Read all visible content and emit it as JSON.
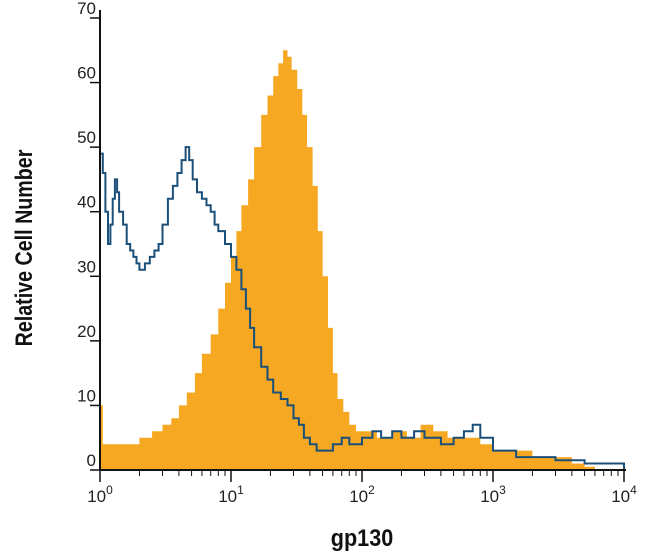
{
  "chart_data": {
    "type": "histogram",
    "xlabel": "gp130",
    "ylabel": "Relative Cell Number",
    "x_scale": "log",
    "xlim": [
      1,
      10000
    ],
    "ylim": [
      0,
      70
    ],
    "y_ticks": [
      0,
      10,
      20,
      30,
      40,
      50,
      60,
      70
    ],
    "y_tick_labels": [
      "0",
      "10",
      "20",
      "30",
      "40",
      "50",
      "60",
      "70"
    ],
    "x_ticks": [
      1,
      10,
      100,
      1000,
      10000
    ],
    "x_tick_labels": [
      {
        "base": "10",
        "exp": "0"
      },
      {
        "base": "10",
        "exp": "1"
      },
      {
        "base": "10",
        "exp": "2"
      },
      {
        "base": "10",
        "exp": "3"
      },
      {
        "base": "10",
        "exp": "4"
      }
    ],
    "grid": false,
    "series": [
      {
        "style": "filled",
        "color": "#f7a823",
        "points": [
          [
            1.0,
            10
          ],
          [
            1.05,
            4
          ],
          [
            1.3,
            4
          ],
          [
            1.6,
            4
          ],
          [
            2.0,
            5
          ],
          [
            2.5,
            6
          ],
          [
            3.0,
            7
          ],
          [
            3.5,
            8
          ],
          [
            4.0,
            10
          ],
          [
            4.6,
            12
          ],
          [
            5.3,
            15
          ],
          [
            6.0,
            18
          ],
          [
            7.0,
            21
          ],
          [
            8.0,
            25
          ],
          [
            9.0,
            29
          ],
          [
            10.0,
            33
          ],
          [
            11.0,
            37
          ],
          [
            12.0,
            41
          ],
          [
            13.5,
            45
          ],
          [
            15.0,
            50
          ],
          [
            17.0,
            55
          ],
          [
            19.0,
            58
          ],
          [
            21.0,
            61
          ],
          [
            23.0,
            63
          ],
          [
            25.0,
            65
          ],
          [
            27.0,
            64
          ],
          [
            29.0,
            62
          ],
          [
            32.0,
            59
          ],
          [
            35.0,
            55
          ],
          [
            38.0,
            50
          ],
          [
            42.0,
            44
          ],
          [
            46.0,
            37
          ],
          [
            50.0,
            30
          ],
          [
            55.0,
            22
          ],
          [
            60.0,
            15
          ],
          [
            65.0,
            11
          ],
          [
            72.0,
            9
          ],
          [
            80.0,
            7
          ],
          [
            90.0,
            6
          ],
          [
            100.0,
            6
          ],
          [
            130.0,
            5
          ],
          [
            170.0,
            6
          ],
          [
            220.0,
            5
          ],
          [
            280.0,
            7
          ],
          [
            350.0,
            6
          ],
          [
            450.0,
            5
          ],
          [
            600.0,
            5
          ],
          [
            800.0,
            4
          ],
          [
            1000.0,
            3
          ],
          [
            1500.0,
            3
          ],
          [
            2000.0,
            2
          ],
          [
            3000.0,
            2
          ],
          [
            4000.0,
            1
          ],
          [
            5000.0,
            0.5
          ],
          [
            6000.0,
            0
          ]
        ]
      },
      {
        "style": "outline",
        "color": "#1a4f7a",
        "points": [
          [
            1.0,
            49
          ],
          [
            1.05,
            46
          ],
          [
            1.1,
            40
          ],
          [
            1.15,
            35
          ],
          [
            1.2,
            38
          ],
          [
            1.25,
            42
          ],
          [
            1.3,
            45
          ],
          [
            1.35,
            43
          ],
          [
            1.4,
            40
          ],
          [
            1.5,
            38
          ],
          [
            1.6,
            35
          ],
          [
            1.7,
            34
          ],
          [
            1.8,
            33
          ],
          [
            1.9,
            32
          ],
          [
            2.0,
            31
          ],
          [
            2.2,
            32
          ],
          [
            2.4,
            33
          ],
          [
            2.6,
            34
          ],
          [
            2.8,
            35
          ],
          [
            3.0,
            38
          ],
          [
            3.3,
            42
          ],
          [
            3.6,
            44
          ],
          [
            3.9,
            46
          ],
          [
            4.2,
            48
          ],
          [
            4.5,
            50
          ],
          [
            4.8,
            48
          ],
          [
            5.1,
            45
          ],
          [
            5.5,
            43
          ],
          [
            6.0,
            42
          ],
          [
            6.5,
            41
          ],
          [
            7.0,
            40
          ],
          [
            7.5,
            38
          ],
          [
            8.0,
            37
          ],
          [
            9.0,
            35
          ],
          [
            10.0,
            33
          ],
          [
            11.0,
            31
          ],
          [
            12.0,
            28
          ],
          [
            13.0,
            25
          ],
          [
            14.0,
            22
          ],
          [
            15.0,
            19
          ],
          [
            17.0,
            16
          ],
          [
            19.0,
            14
          ],
          [
            21.0,
            12
          ],
          [
            24.0,
            11
          ],
          [
            27.0,
            10
          ],
          [
            30.0,
            8
          ],
          [
            33.0,
            7
          ],
          [
            36.0,
            5
          ],
          [
            40.0,
            4
          ],
          [
            45.0,
            3
          ],
          [
            50.0,
            3
          ],
          [
            60.0,
            4
          ],
          [
            70.0,
            5
          ],
          [
            80.0,
            4
          ],
          [
            90.0,
            4
          ],
          [
            100.0,
            5
          ],
          [
            120.0,
            6
          ],
          [
            140.0,
            5
          ],
          [
            170.0,
            6
          ],
          [
            200.0,
            5
          ],
          [
            250.0,
            6
          ],
          [
            300.0,
            5
          ],
          [
            400.0,
            4
          ],
          [
            500.0,
            5
          ],
          [
            600.0,
            6
          ],
          [
            700.0,
            7
          ],
          [
            800.0,
            5
          ],
          [
            1000.0,
            3
          ],
          [
            1500.0,
            2
          ],
          [
            2000.0,
            2
          ],
          [
            3000.0,
            1.5
          ],
          [
            5000.0,
            1
          ],
          [
            9500.0,
            1
          ],
          [
            10000.0,
            0
          ]
        ]
      }
    ]
  }
}
